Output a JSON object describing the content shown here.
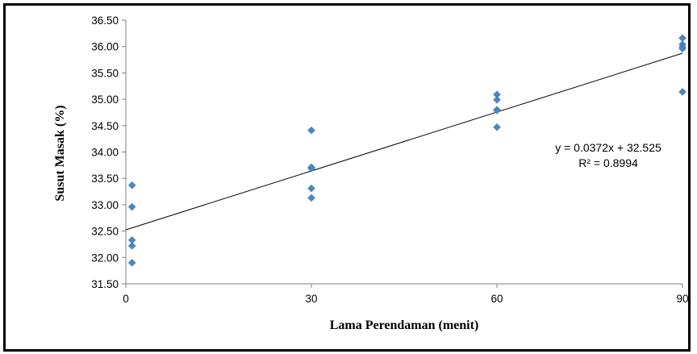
{
  "chart_data": {
    "type": "scatter",
    "title": "",
    "xlabel": "Lama Perendaman (menit)",
    "ylabel": "Susut Masak (%)",
    "xlim": [
      0,
      90
    ],
    "ylim": [
      31.5,
      36.5
    ],
    "x_ticks": [
      "0",
      "30",
      "60",
      "90"
    ],
    "y_ticks": [
      "31.50",
      "32.00",
      "32.50",
      "33.00",
      "33.50",
      "34.00",
      "34.50",
      "35.00",
      "35.50",
      "36.00",
      "36.50"
    ],
    "grid": false,
    "legend": "none",
    "marker_color": "#4a86c5",
    "series": [
      {
        "points": [
          [
            1,
            33.37
          ],
          [
            1,
            32.96
          ],
          [
            1,
            32.33
          ],
          [
            1,
            32.22
          ],
          [
            1,
            31.9
          ],
          [
            30,
            34.41
          ],
          [
            30,
            33.71
          ],
          [
            30,
            33.69
          ],
          [
            30,
            33.31
          ],
          [
            30,
            33.13
          ],
          [
            60,
            35.09
          ],
          [
            60,
            34.99
          ],
          [
            60,
            34.8
          ],
          [
            60,
            34.79
          ],
          [
            60,
            34.47
          ],
          [
            90,
            36.16
          ],
          [
            90,
            36.04
          ],
          [
            90,
            35.99
          ],
          [
            90,
            35.96
          ],
          [
            90,
            35.14
          ]
        ]
      }
    ],
    "trendline": {
      "slope": 0.0372,
      "intercept": 32.525,
      "x_range": [
        0,
        90
      ],
      "equation": "y = 0.0372x + 32.525",
      "r_squared": "R² = 0.8994"
    }
  }
}
